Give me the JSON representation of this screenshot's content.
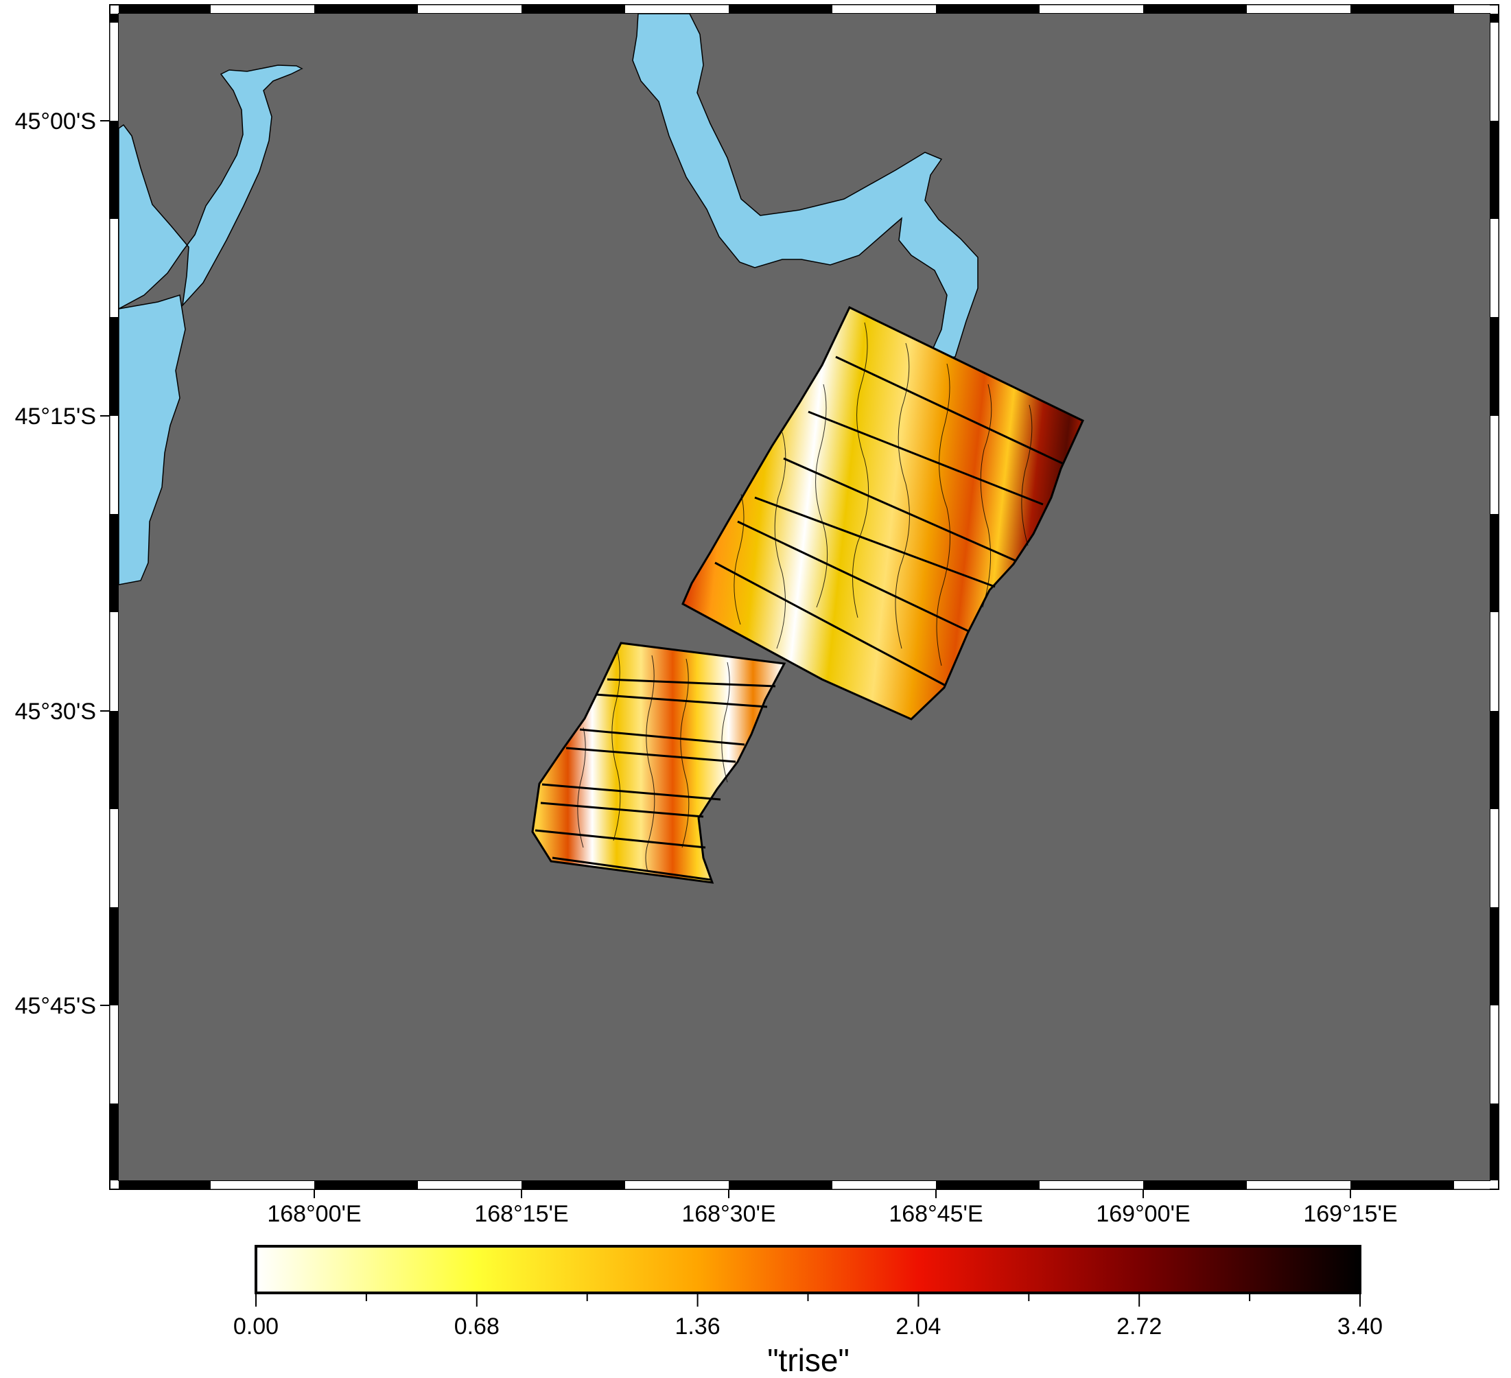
{
  "map": {
    "land_color": "#666666",
    "water_color": "#87ceeb",
    "frame_colors": [
      "#000000",
      "#ffffff"
    ],
    "lat_labels": [
      "45°00'S",
      "45°15'S",
      "45°30'S",
      "45°45'S"
    ],
    "lon_labels": [
      "168°00'E",
      "168°15'E",
      "168°30'E",
      "168°45'E",
      "169°00'E",
      "169°15'E"
    ]
  },
  "colorbar": {
    "title": "\"trise\"",
    "tick_labels": [
      "0.00",
      "0.68",
      "1.36",
      "2.04",
      "2.72",
      "3.40"
    ],
    "range": [
      0,
      3.4
    ],
    "colors": [
      "#ffffff",
      "#ffff33",
      "#ffa500",
      "#ee1100",
      "#7a0000",
      "#000000"
    ]
  }
}
